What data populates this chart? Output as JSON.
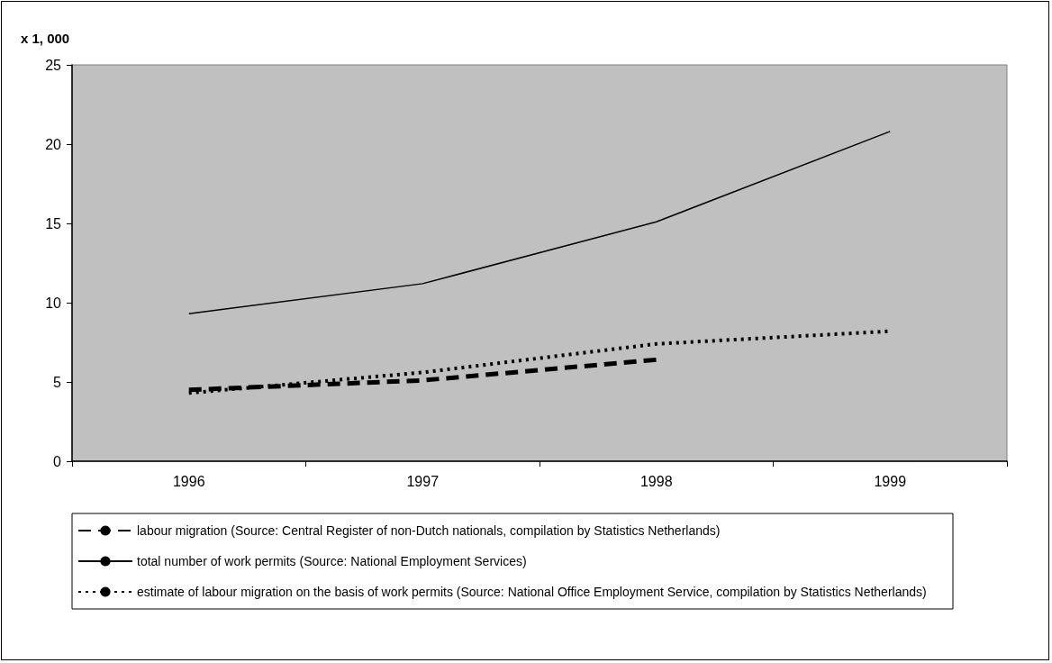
{
  "chart_data": {
    "type": "line",
    "ylabel": "x 1, 000",
    "categories": [
      "1996",
      "1997",
      "1998",
      "1999"
    ],
    "series": [
      {
        "name": "labour migration (Source: Central Register of non-Dutch nationals, compilation by Statistics Netherlands)",
        "color": "#000000",
        "line_style": "dashed",
        "values": [
          4.5,
          5.1,
          6.4,
          null
        ]
      },
      {
        "name": "total number of work permits (Source: National Employment Services)",
        "color": "#000000",
        "line_style": "solid",
        "values": [
          9.3,
          11.2,
          15.1,
          20.8
        ]
      },
      {
        "name": "estimate of labour migration on the basis of work permits (Source: National Office Employment Service, compilation by Statistics Netherlands)",
        "color": "#000000",
        "line_style": "dotted",
        "values": [
          4.3,
          5.6,
          7.4,
          8.2
        ]
      }
    ],
    "ylim": [
      0,
      25
    ],
    "yticks": [
      0,
      5,
      10,
      15,
      20,
      25
    ],
    "grid": false,
    "legend": "bottom",
    "marker": "none"
  }
}
